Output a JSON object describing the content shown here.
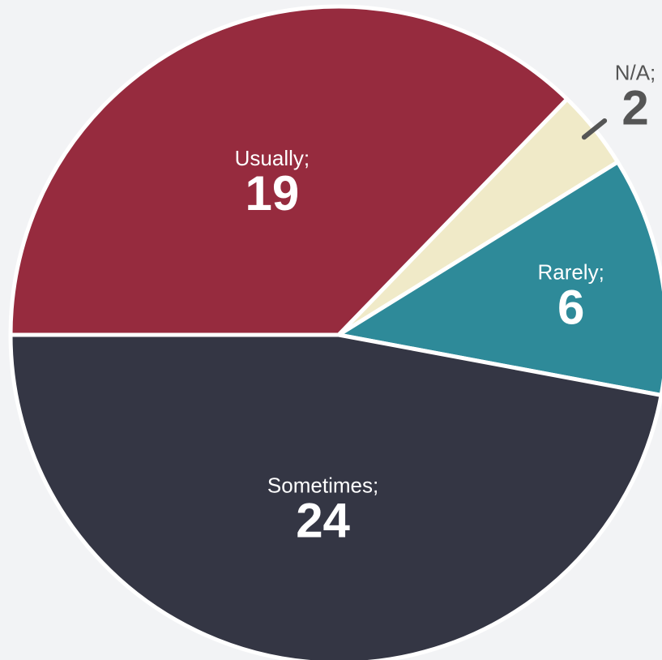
{
  "chart_data": {
    "type": "pie",
    "categories": [
      "Usually;",
      "N/A;",
      "Rarely;",
      "Sometimes;"
    ],
    "values": [
      19,
      2,
      6,
      24
    ],
    "colors": [
      "#962b3e",
      "#f0eac8",
      "#2e8a99",
      "#343644"
    ]
  }
}
